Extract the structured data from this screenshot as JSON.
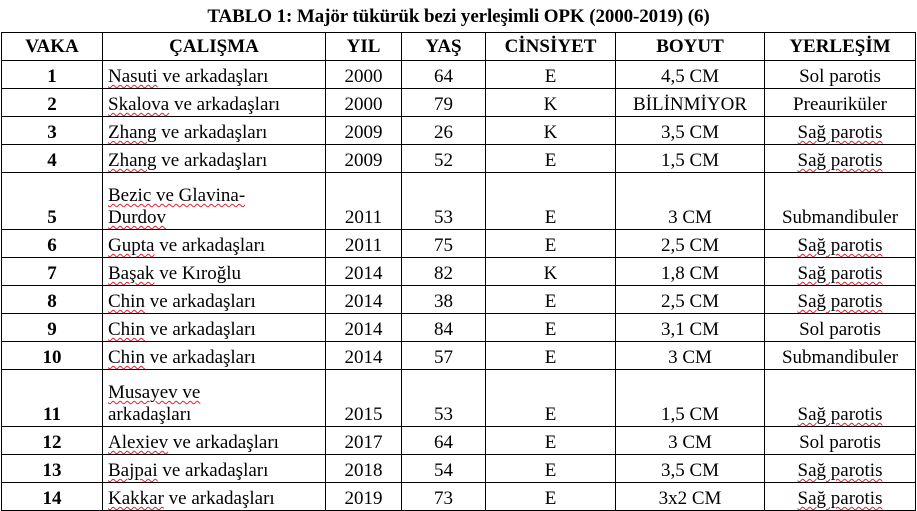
{
  "title": "TABLO 1: Majör tükürük bezi yerleşimli OPK (2000-2019) (6)",
  "headers": [
    "VAKA",
    "ÇALIŞMA",
    "YIL",
    "YAŞ",
    "CİNSİYET",
    "BOYUT",
    "YERLEŞİM"
  ],
  "rows": [
    {
      "vaka": "1",
      "calisma_a": "Nasuti",
      "calisma_b": " ve arkadaşları",
      "yil": "2000",
      "yas": "64",
      "cinsiyet": "E",
      "boyut": "4,5 CM",
      "yerlesim": "Sol parotis"
    },
    {
      "vaka": "2",
      "calisma_a": "Skalova",
      "calisma_b": " ve arkadaşları",
      "yil": "2000",
      "yas": "79",
      "cinsiyet": "K",
      "boyut": "BİLİNMİYOR",
      "yerlesim": "Preauriküler"
    },
    {
      "vaka": "3",
      "calisma_a": "Zhang",
      "calisma_b": " ve arkadaşları",
      "yil": "2009",
      "yas": "26",
      "cinsiyet": "K",
      "boyut": "3,5 CM",
      "yerlesim": "Sağ parotis"
    },
    {
      "vaka": "4",
      "calisma_a": "Zhang",
      "calisma_b": " ve arkadaşları",
      "yil": "2009",
      "yas": "52",
      "cinsiyet": "E",
      "boyut": "1,5 CM",
      "yerlesim": "Sağ parotis"
    },
    {
      "vaka": "5",
      "calisma_a": "Bezic ve Glavina-",
      "calisma_b": "Durdov",
      "yil": "2011",
      "yas": "53",
      "cinsiyet": "E",
      "boyut": "3 CM",
      "yerlesim": "Submandibuler"
    },
    {
      "vaka": "6",
      "calisma_a": "Gupta",
      "calisma_b": " ve arkadaşları",
      "yil": "2011",
      "yas": "75",
      "cinsiyet": "E",
      "boyut": "2,5 CM",
      "yerlesim": "Sağ parotis"
    },
    {
      "vaka": "7",
      "calisma_a": "Başak",
      "calisma_b": " ve Kıroğlu",
      "yil": "2014",
      "yas": "82",
      "cinsiyet": "K",
      "boyut": "1,8 CM",
      "yerlesim": "Sağ parotis"
    },
    {
      "vaka": "8",
      "calisma_a": "Chin",
      "calisma_b": " ve arkadaşları",
      "yil": "2014",
      "yas": "38",
      "cinsiyet": "E",
      "boyut": "2,5 CM",
      "yerlesim": "Sağ parotis"
    },
    {
      "vaka": "9",
      "calisma_a": "Chin",
      "calisma_b": " ve arkadaşları",
      "yil": "2014",
      "yas": "84",
      "cinsiyet": "E",
      "boyut": "3,1 CM",
      "yerlesim": "Sol parotis"
    },
    {
      "vaka": "10",
      "calisma_a": "Chin",
      "calisma_b": " ve arkadaşları",
      "yil": "2014",
      "yas": "57",
      "cinsiyet": "E",
      "boyut": "3 CM",
      "yerlesim": "Submandibuler"
    },
    {
      "vaka": "11",
      "calisma_a": "Musayev ve",
      "calisma_b": "arkadaşları",
      "yil": "2015",
      "yas": "53",
      "cinsiyet": "E",
      "boyut": "1,5 CM",
      "yerlesim": "Sağ parotis"
    },
    {
      "vaka": "12",
      "calisma_a": "Alexiev",
      "calisma_b": " ve arkadaşları",
      "yil": "2017",
      "yas": "64",
      "cinsiyet": "E",
      "boyut": "3 CM",
      "yerlesim": "Sol parotis"
    },
    {
      "vaka": "13",
      "calisma_a": "Bajpai",
      "calisma_b": " ve arkadaşları",
      "yil": "2018",
      "yas": "54",
      "cinsiyet": "E",
      "boyut": "3,5 CM",
      "yerlesim": "Sağ parotis"
    },
    {
      "vaka": "14",
      "calisma_a": "Kakkar",
      "calisma_b": " ve arkadaşları",
      "yil": "2019",
      "yas": "73",
      "cinsiyet": "E",
      "boyut": "3x2 CM",
      "yerlesim": "Sağ parotis"
    }
  ]
}
